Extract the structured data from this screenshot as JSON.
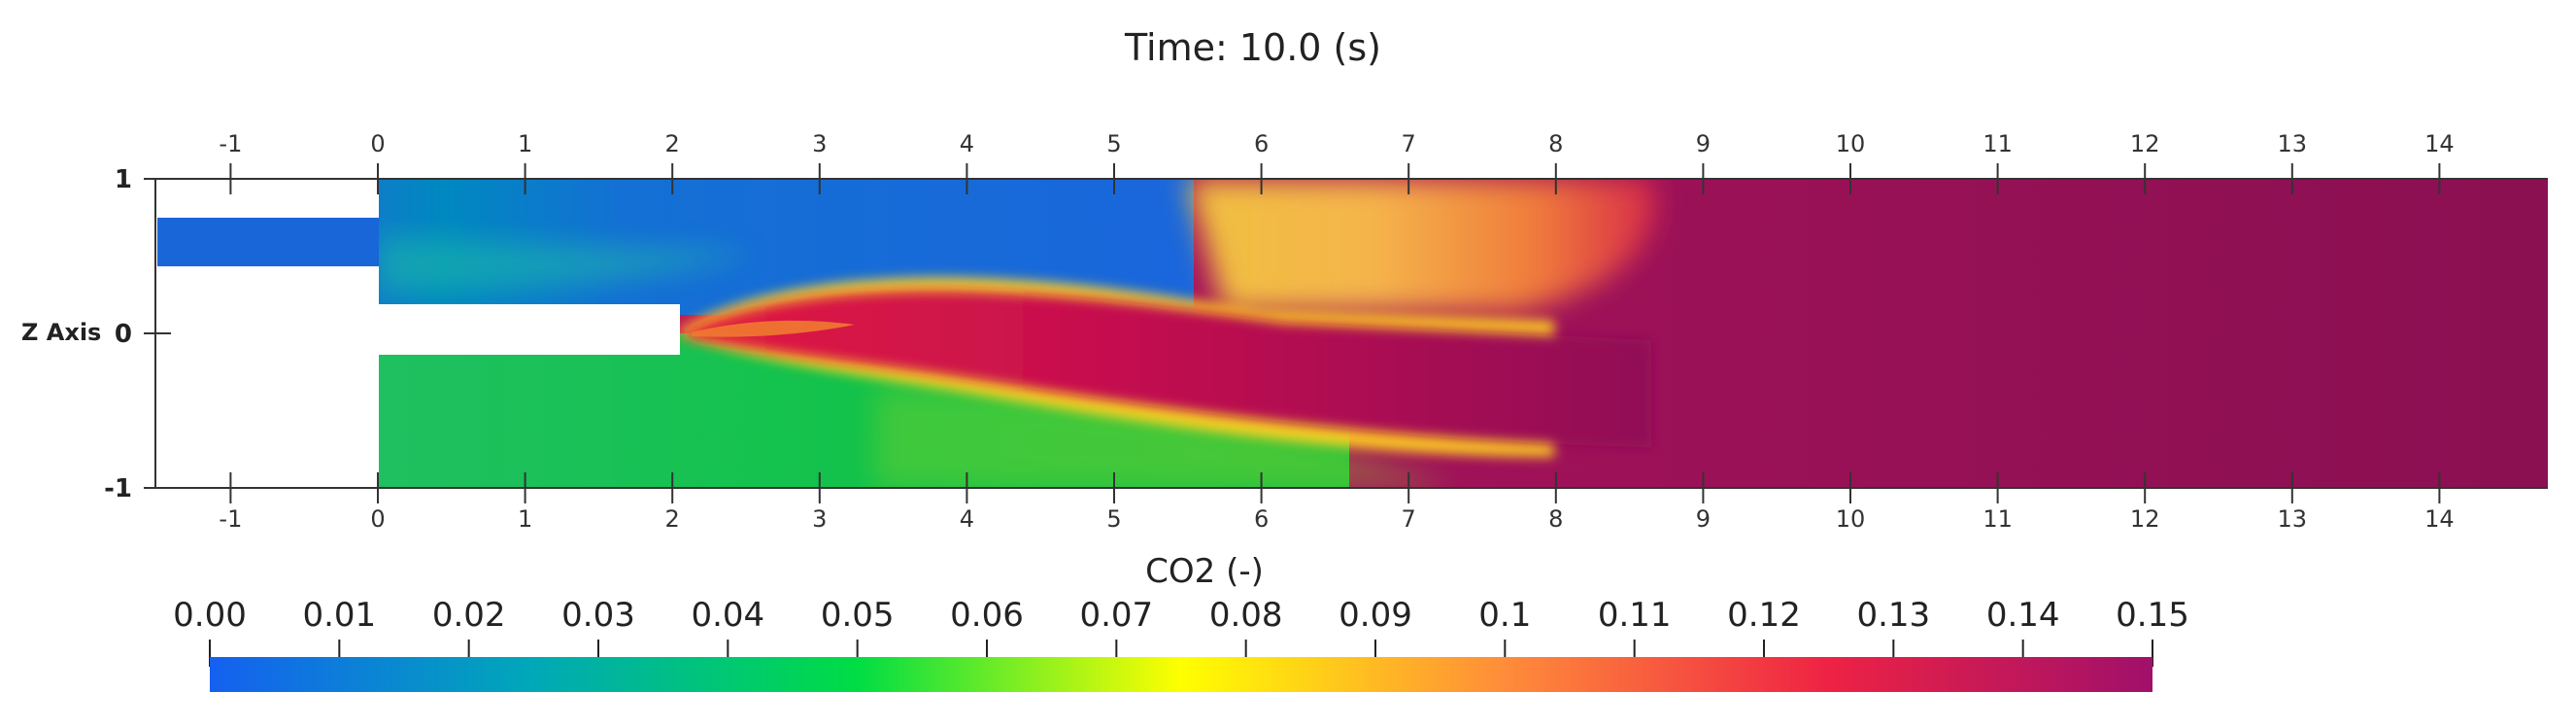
{
  "chart_data": {
    "type": "heatmap",
    "title": "Time: 10.0 (s)",
    "field": "CO2 (-)",
    "z_axis_label": "Z Axis",
    "x_ticks": [
      -1,
      0,
      1,
      2,
      3,
      4,
      5,
      6,
      7,
      8,
      9,
      10,
      11,
      12,
      13,
      14
    ],
    "z_ticks": [
      -1,
      0,
      1
    ],
    "x_range": [
      -1.5,
      14.7
    ],
    "z_range": [
      -1.05,
      1.0
    ],
    "colorbar": {
      "title": "CO2 (-)",
      "range": [
        0.0,
        0.15
      ],
      "tick_labels": [
        "0.00",
        "0.01",
        "0.02",
        "0.03",
        "0.04",
        "0.05",
        "0.06",
        "0.07",
        "0.08",
        "0.09",
        "0.1",
        "0.11",
        "0.12",
        "0.13",
        "0.14",
        "0.15"
      ],
      "colors": [
        "#1560f0",
        "#00a8b8",
        "#00dd44",
        "#ffff00",
        "#ff8c3a",
        "#ee2244",
        "#a0106a"
      ]
    },
    "regions": {
      "upper_channel_value": 0.005,
      "lower_channel_value": 0.05,
      "flame_core_value": 0.145,
      "downstream_value": 0.15
    }
  }
}
